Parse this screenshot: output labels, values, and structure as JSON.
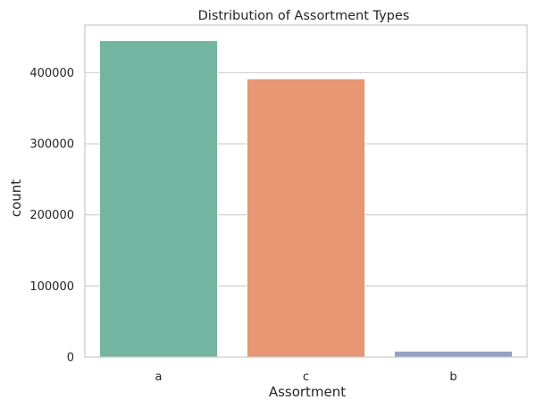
{
  "chart_data": {
    "type": "bar",
    "title": "Distribution of Assortment Types",
    "xlabel": "Assortment",
    "ylabel": "count",
    "categories": [
      "a",
      "c",
      "b"
    ],
    "values": [
      444875,
      391254,
      8294
    ],
    "colors": [
      "#72b6a1",
      "#e99675",
      "#95a3c3"
    ],
    "ylim": [
      0,
      467000
    ],
    "yticks": [
      0,
      100000,
      200000,
      300000,
      400000
    ],
    "ytick_labels": [
      "0",
      "100000",
      "200000",
      "300000",
      "400000"
    ],
    "grid": "horizontal",
    "grid_color": "#cccccc",
    "axes_edge_color": "#cccccc",
    "style": "seaborn-whitegrid"
  }
}
